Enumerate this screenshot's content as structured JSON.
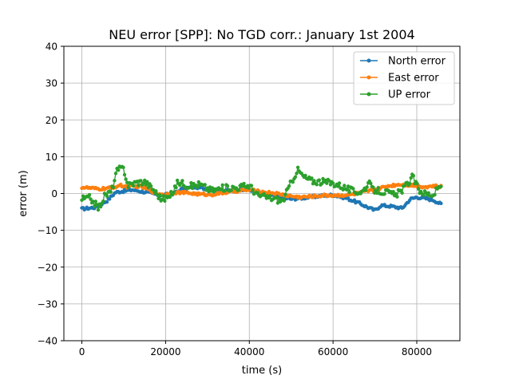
{
  "chart_data": {
    "type": "line",
    "title": "NEU error [SPP]: No TGD corr.: January 1st 2004",
    "xlabel": "time (s)",
    "ylabel": "error (m)",
    "xlim": [
      -4300,
      90300
    ],
    "ylim": [
      -40,
      40
    ],
    "xticks": [
      0,
      20000,
      40000,
      60000,
      80000
    ],
    "yticks": [
      -40,
      -30,
      -20,
      -10,
      0,
      10,
      20,
      30,
      40
    ],
    "xtick_labels": [
      "0",
      "20000",
      "40000",
      "60000",
      "80000"
    ],
    "ytick_labels": [
      "−40",
      "−30",
      "−20",
      "−10",
      "0",
      "10",
      "20",
      "30",
      "40"
    ],
    "grid": true,
    "legend_position": "top-right",
    "x_start": 0,
    "x_step": 300,
    "series": [
      {
        "name": "North error",
        "color": "#1f77b4",
        "anchors": [
          [
            0,
            -4.2
          ],
          [
            3000,
            -3.8
          ],
          [
            6000,
            -2.0
          ],
          [
            8000,
            0.3
          ],
          [
            12000,
            1.0
          ],
          [
            15000,
            0.4
          ],
          [
            19000,
            -0.5
          ],
          [
            22000,
            0.0
          ],
          [
            24000,
            1.3
          ],
          [
            27000,
            1.8
          ],
          [
            30000,
            1.2
          ],
          [
            33000,
            0.8
          ],
          [
            36000,
            0.8
          ],
          [
            39000,
            1.2
          ],
          [
            41000,
            0.6
          ],
          [
            44000,
            -0.2
          ],
          [
            47000,
            -1.0
          ],
          [
            50000,
            -1.5
          ],
          [
            53000,
            -1.2
          ],
          [
            56000,
            -0.8
          ],
          [
            60000,
            -0.4
          ],
          [
            63000,
            -1.2
          ],
          [
            66000,
            -2.5
          ],
          [
            68000,
            -3.6
          ],
          [
            70000,
            -4.6
          ],
          [
            71500,
            -3.2
          ],
          [
            74000,
            -3.5
          ],
          [
            76500,
            -4.0
          ],
          [
            78500,
            -1.5
          ],
          [
            80000,
            -1.0
          ],
          [
            82000,
            -1.3
          ],
          [
            84000,
            -1.8
          ],
          [
            86000,
            -3.0
          ]
        ]
      },
      {
        "name": "East error",
        "color": "#ff7f0e",
        "anchors": [
          [
            0,
            1.7
          ],
          [
            4000,
            1.2
          ],
          [
            7000,
            1.5
          ],
          [
            9000,
            2.2
          ],
          [
            11000,
            1.8
          ],
          [
            14000,
            2.0
          ],
          [
            16000,
            1.0
          ],
          [
            18000,
            0.0
          ],
          [
            20000,
            -0.3
          ],
          [
            22000,
            0.3
          ],
          [
            25000,
            0.2
          ],
          [
            28000,
            -0.2
          ],
          [
            31000,
            -0.3
          ],
          [
            34000,
            0.2
          ],
          [
            37000,
            0.7
          ],
          [
            40000,
            1.0
          ],
          [
            43000,
            0.4
          ],
          [
            46000,
            0.1
          ],
          [
            49000,
            -0.6
          ],
          [
            52000,
            -1.0
          ],
          [
            55000,
            -0.8
          ],
          [
            58000,
            -0.5
          ],
          [
            61000,
            -0.5
          ],
          [
            64000,
            -0.4
          ],
          [
            67000,
            0.3
          ],
          [
            70000,
            1.0
          ],
          [
            73000,
            2.0
          ],
          [
            76000,
            2.5
          ],
          [
            79000,
            2.2
          ],
          [
            82000,
            1.8
          ],
          [
            84000,
            2.0
          ],
          [
            86000,
            1.8
          ]
        ]
      },
      {
        "name": "UP error",
        "color": "#2ca02c",
        "anchors": [
          [
            0,
            -1.5
          ],
          [
            2000,
            -1.2
          ],
          [
            4000,
            -4.0
          ],
          [
            5500,
            -0.5
          ],
          [
            7000,
            0.5
          ],
          [
            8500,
            6.5
          ],
          [
            10000,
            6.8
          ],
          [
            11000,
            2.2
          ],
          [
            13000,
            3.0
          ],
          [
            15000,
            3.2
          ],
          [
            17000,
            1.2
          ],
          [
            19000,
            -1.5
          ],
          [
            21000,
            -1.0
          ],
          [
            23000,
            3.2
          ],
          [
            26000,
            2.0
          ],
          [
            28000,
            2.5
          ],
          [
            31000,
            0.8
          ],
          [
            34000,
            1.5
          ],
          [
            37000,
            1.6
          ],
          [
            40000,
            2.2
          ],
          [
            42000,
            -0.5
          ],
          [
            45000,
            -1.2
          ],
          [
            48000,
            -2.0
          ],
          [
            50000,
            3.0
          ],
          [
            51500,
            6.5
          ],
          [
            53000,
            4.5
          ],
          [
            55000,
            3.4
          ],
          [
            57000,
            3.2
          ],
          [
            59000,
            3.0
          ],
          [
            61000,
            2.5
          ],
          [
            63000,
            1.5
          ],
          [
            65000,
            0.5
          ],
          [
            67000,
            0.5
          ],
          [
            68500,
            2.8
          ],
          [
            69500,
            1.0
          ],
          [
            72000,
            0.5
          ],
          [
            75000,
            -0.5
          ],
          [
            77000,
            1.5
          ],
          [
            79000,
            4.5
          ],
          [
            80500,
            1.0
          ],
          [
            82000,
            0.0
          ],
          [
            84000,
            -0.3
          ],
          [
            86000,
            2.8
          ]
        ]
      }
    ]
  }
}
